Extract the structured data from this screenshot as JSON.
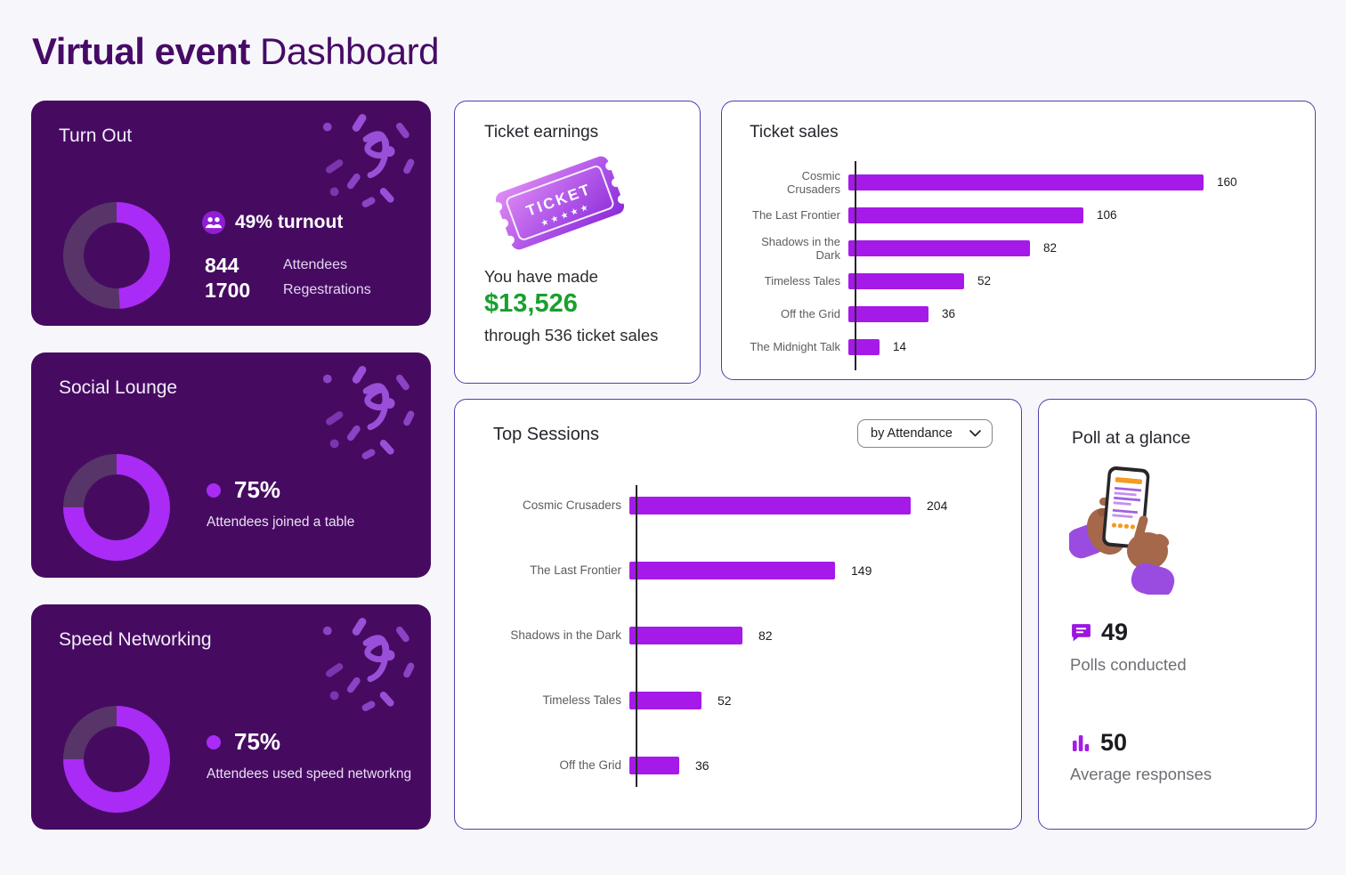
{
  "header": {
    "title_bold": "Virtual event",
    "title_regular": "Dashboard"
  },
  "colors": {
    "page_bg": "#F7F7FB",
    "dark_card_bg": "#460B61",
    "donut_bright": "#A92BF5",
    "donut_muted": "#573569",
    "bar_purple": "#A51AE8",
    "green": "#17A12D",
    "card_border": "#4B42AD",
    "title_purple": "#470A66"
  },
  "turn_out": {
    "title": "Turn Out",
    "percent": 49,
    "headline": "49% turnout",
    "stats": [
      {
        "value": "844",
        "label": "Attendees"
      },
      {
        "value": "1700",
        "label": "Regestrations"
      }
    ]
  },
  "social_lounge": {
    "title": "Social Lounge",
    "percent": 75,
    "headline": "75%",
    "caption": "Attendees joined a table"
  },
  "speed_networking": {
    "title": "Speed Networking",
    "percent": 75,
    "headline": "75%",
    "caption": "Attendees used speed networkng"
  },
  "ticket_earnings": {
    "title": "Ticket earnings",
    "line1": "You have made",
    "amount": "$13,526",
    "line2": "through 536 ticket sales",
    "ticket_text": "TICKET",
    "ticket_stars": "★ ★ ★ ★ ★"
  },
  "ticket_sales": {
    "title": "Ticket sales"
  },
  "top_sessions": {
    "title": "Top Sessions",
    "filter_label": "by Attendance"
  },
  "poll": {
    "title": "Poll at a glance",
    "stats": [
      {
        "icon": "chat-icon",
        "value": "49",
        "label": "Polls conducted"
      },
      {
        "icon": "bar-chart-icon",
        "value": "50",
        "label": "Average responses"
      }
    ]
  },
  "icons": {
    "people": "group of attendees",
    "dot": "●",
    "chevron_down": "⌄",
    "chat": "speech bubble",
    "bar_chart": "mini column chart",
    "ticket": "purple event ticket",
    "phone": "hands holding phone rating a poll",
    "confetti": "purple confetti burst"
  },
  "chart_data": [
    {
      "id": "ticket_sales",
      "type": "bar",
      "orientation": "horizontal",
      "title": "Ticket sales",
      "categories": [
        "Cosmic Crusaders",
        "The Last Frontier",
        "Shadows in the Dark",
        "Timeless Tales",
        "Off the Grid",
        "The Midnight Talk"
      ],
      "values": [
        160,
        106,
        82,
        52,
        36,
        14
      ],
      "bar_color": "#A51AE8",
      "value_labels_shown": true,
      "grid": false,
      "legend": "none"
    },
    {
      "id": "top_sessions",
      "type": "bar",
      "orientation": "horizontal",
      "title": "Top Sessions",
      "categories": [
        "Cosmic Crusaders",
        "The Last Frontier",
        "Shadows in the Dark",
        "Timeless Tales",
        "Off the Grid"
      ],
      "values": [
        204,
        149,
        82,
        52,
        36
      ],
      "bar_color": "#A51AE8",
      "value_labels_shown": true,
      "grid": false,
      "legend": "none"
    }
  ]
}
